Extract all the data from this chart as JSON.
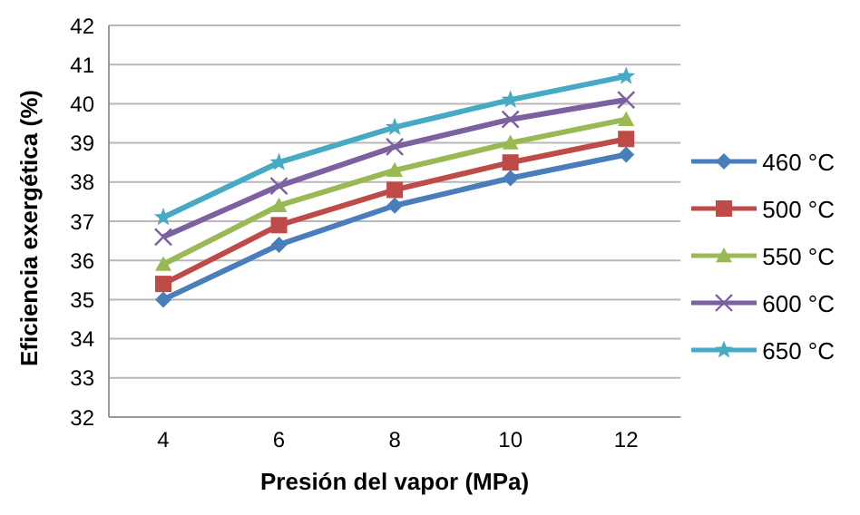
{
  "chart_data": {
    "type": "line",
    "xlabel": "Presión del vapor (MPa)",
    "ylabel": "Eficiencia exergética (%)",
    "categories": [
      "4",
      "6",
      "8",
      "10",
      "12"
    ],
    "series": [
      {
        "name": "460 °C",
        "color": "#4a7ebb",
        "marker": "diamond",
        "values": [
          35.0,
          36.4,
          37.4,
          38.1,
          38.7
        ]
      },
      {
        "name": "500 °C",
        "color": "#be4b48",
        "marker": "square",
        "values": [
          35.4,
          36.9,
          37.8,
          38.5,
          39.1
        ]
      },
      {
        "name": "550 °C",
        "color": "#98b954",
        "marker": "triangle",
        "values": [
          35.9,
          37.4,
          38.3,
          39.0,
          39.6
        ]
      },
      {
        "name": "600 °C",
        "color": "#7d60a0",
        "marker": "cross",
        "values": [
          36.6,
          37.9,
          38.9,
          39.6,
          40.1
        ]
      },
      {
        "name": "650 °C",
        "color": "#46aac5",
        "marker": "star",
        "values": [
          37.1,
          38.5,
          39.4,
          40.1,
          40.7
        ]
      }
    ],
    "ylim": [
      32,
      42
    ],
    "yticks": [
      32,
      33,
      34,
      35,
      36,
      37,
      38,
      39,
      40,
      41,
      42
    ],
    "grid": "y",
    "legend": "right"
  }
}
